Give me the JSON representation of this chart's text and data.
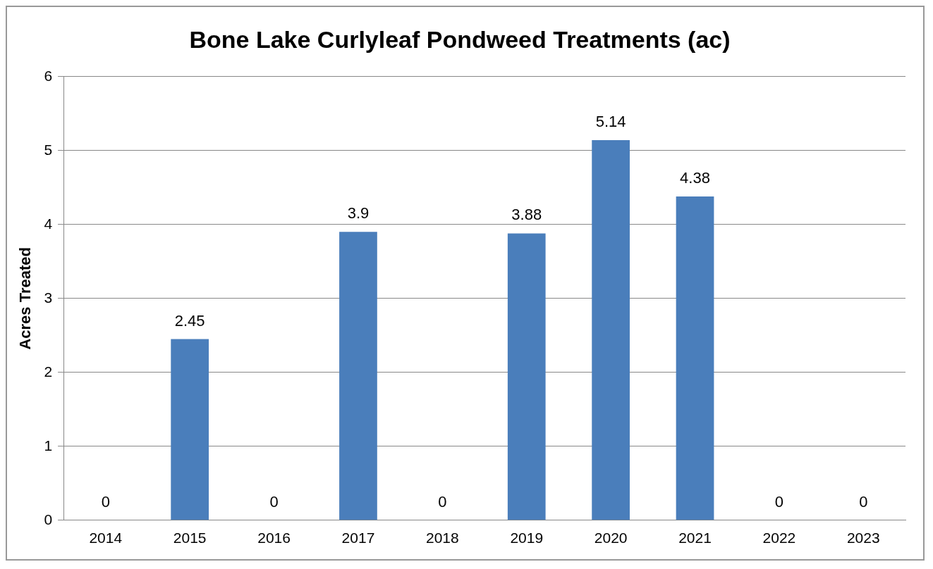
{
  "chart_data": {
    "type": "bar",
    "title": "Bone Lake Curlyleaf Pondweed Treatments (ac)",
    "ylabel": "Acres Treated",
    "categories": [
      "2014",
      "2015",
      "2016",
      "2017",
      "2018",
      "2019",
      "2020",
      "2021",
      "2022",
      "2023"
    ],
    "values": [
      0,
      2.45,
      0,
      3.9,
      0,
      3.88,
      5.14,
      4.38,
      0,
      0
    ],
    "color": "#4a7ebb",
    "ylim": [
      0,
      6
    ],
    "yticks": [
      0,
      1,
      2,
      3,
      4,
      5,
      6
    ],
    "grid": "y",
    "data_labels": true,
    "legend": false
  }
}
